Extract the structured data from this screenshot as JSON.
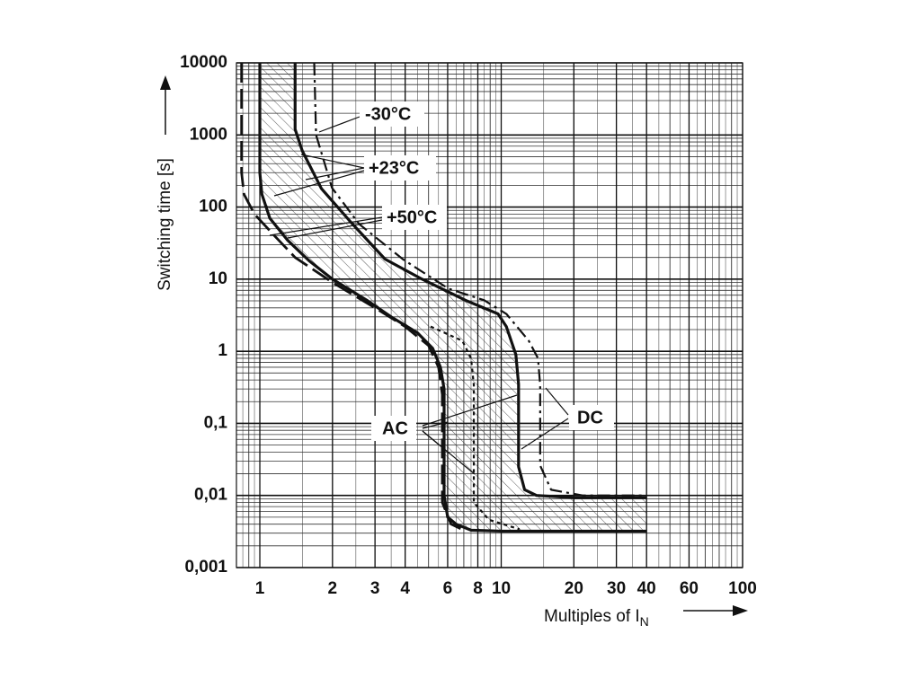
{
  "chart_data": {
    "type": "line",
    "log_x": true,
    "log_y": true,
    "grid": true,
    "y_label": "Switching time [s]",
    "x_label": "Multiples of I",
    "x_label_sub": "N",
    "xlim": [
      0.8,
      100
    ],
    "ylim": [
      0.001,
      10000
    ],
    "xticks": [
      1,
      2,
      3,
      4,
      6,
      8,
      10,
      20,
      30,
      40,
      60,
      100
    ],
    "yticks": [
      {
        "value": 0.001,
        "label": "0,001"
      },
      {
        "value": 0.01,
        "label": "0,01"
      },
      {
        "value": 0.1,
        "label": "0,1"
      },
      1,
      10,
      100,
      1000,
      10000
    ],
    "color": "#111111",
    "series": [
      {
        "dash": "dashed",
        "x": [
          0.84,
          0.84,
          0.86,
          0.95,
          1.15,
          1.4,
          2,
          3,
          4,
          5,
          5.5,
          5.7,
          5.7,
          6.2,
          7
        ],
        "y": [
          10000,
          300,
          150,
          80,
          40,
          20,
          9,
          4,
          2.2,
          1.2,
          0.6,
          0.25,
          0.008,
          0.004,
          0.0033
        ]
      },
      {
        "dash": "solid",
        "x": [
          1,
          1,
          1.02,
          1.1,
          1.3,
          1.6,
          2,
          2.8,
          3.5,
          4.5,
          5.2,
          5.6,
          5.8,
          5.8,
          6,
          6.5,
          7.5,
          10,
          20,
          40
        ],
        "y": [
          10000,
          300,
          150,
          70,
          35,
          18,
          10,
          5,
          3,
          1.8,
          1.1,
          0.6,
          0.3,
          0.01,
          0.005,
          0.004,
          0.0033,
          0.0032,
          0.0032,
          0.0032
        ]
      },
      {
        "dash": "solid",
        "x": [
          1.4,
          1.4,
          1.5,
          1.8,
          2.4,
          3.3,
          4.7,
          7.2,
          9.7,
          10.5,
          11.5,
          11.8,
          11.8,
          12.5,
          14,
          20,
          40
        ],
        "y": [
          10000,
          1200,
          600,
          180,
          60,
          19,
          10,
          5,
          3.3,
          2.2,
          0.9,
          0.35,
          0.025,
          0.012,
          0.01,
          0.0093,
          0.0093
        ]
      },
      {
        "dash": "dashdot",
        "x": [
          1.68,
          1.71,
          1.99,
          2.58,
          3.94,
          6.04,
          8.5,
          10.5,
          13,
          14.2,
          14.5,
          14.5,
          16.1,
          21.7,
          39.3
        ],
        "y": [
          10000,
          1000,
          185,
          58,
          18.6,
          7.4,
          5.1,
          3.3,
          1.4,
          0.8,
          0.34,
          0.026,
          0.012,
          0.01,
          0.01
        ]
      },
      {
        "dash": "dotted",
        "x": [
          5.1,
          6.9,
          7.5,
          7.7,
          7.7,
          8.9,
          11.9
        ],
        "y": [
          2.2,
          1.4,
          0.8,
          0.34,
          0.008,
          0.0046,
          0.0034
        ]
      }
    ],
    "annotations": [
      "-30°C",
      "+23°C",
      "+50°C",
      "AC",
      "DC"
    ]
  }
}
